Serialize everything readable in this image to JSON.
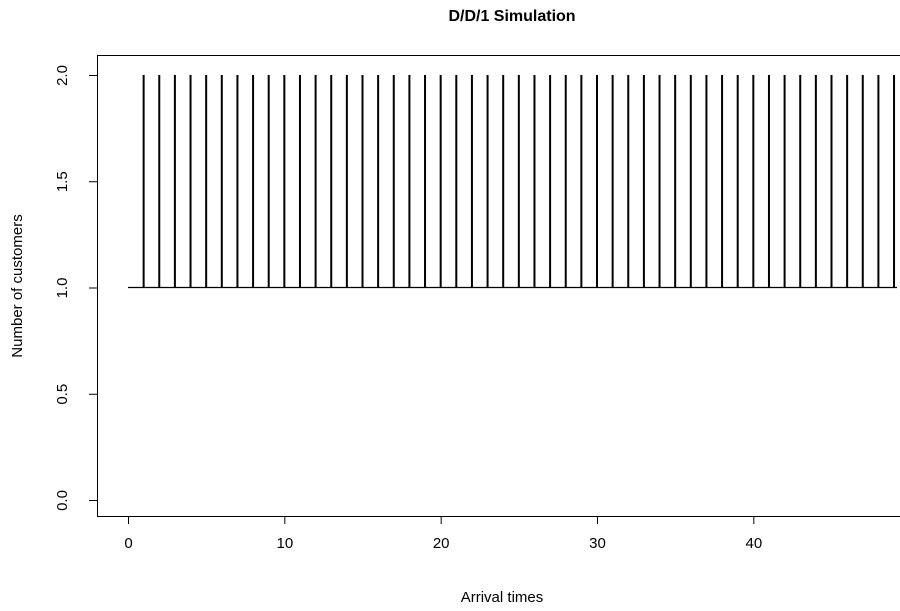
{
  "chart_data": {
    "type": "line",
    "title": "D/D/1 Simulation",
    "xlabel": "Arrival times",
    "ylabel": "Number of customers",
    "xlim": [
      -2,
      49.5
    ],
    "ylim": [
      -0.05,
      2.05
    ],
    "x_ticks": [
      "0",
      "10",
      "20",
      "30",
      "40"
    ],
    "y_ticks": [
      "0.0",
      "0.5",
      "1.0",
      "1.5",
      "2.0"
    ],
    "grid": false,
    "legend": "none",
    "series": [
      {
        "baseline": {
          "x": [
            0,
            49.5
          ],
          "y": 1
        },
        "spikes": {
          "x": [
            1,
            2,
            3,
            4,
            5,
            6,
            7,
            8,
            9,
            10,
            11,
            12,
            13,
            14,
            15,
            16,
            17,
            18,
            19,
            20,
            21,
            22,
            23,
            24,
            25,
            26,
            27,
            28,
            29,
            30,
            31,
            32,
            33,
            34,
            35,
            36,
            37,
            38,
            39,
            40,
            41,
            42,
            43,
            44,
            45,
            46,
            47,
            48,
            49
          ],
          "from_y": 1,
          "to_y": 2
        }
      }
    ],
    "color": "#000000"
  }
}
